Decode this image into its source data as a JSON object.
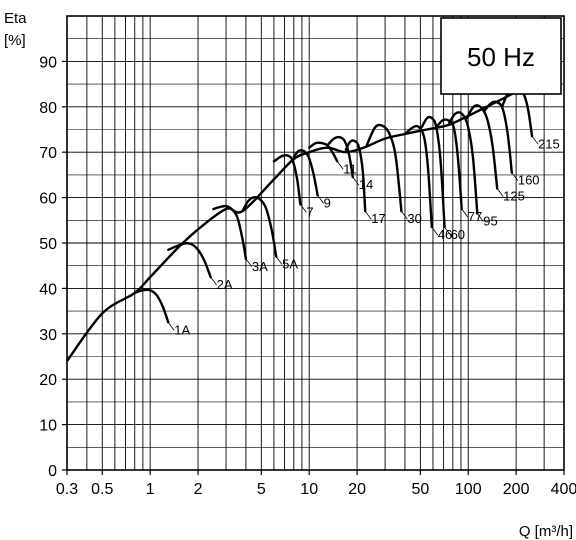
{
  "chart_data": {
    "type": "line",
    "ylabel": "Eta",
    "ylabel_unit": "[%]",
    "xlabel": "Q [m³/h]",
    "badge": "50 Hz",
    "x_scale": "log",
    "xlim": [
      0.3,
      400
    ],
    "ylim": [
      0,
      100
    ],
    "grid": true,
    "x_ticks": [
      0.3,
      0.5,
      1,
      2,
      5,
      10,
      20,
      50,
      100,
      200,
      400
    ],
    "x_tick_labels": [
      "0.3",
      "0.5",
      "1",
      "2",
      "5",
      "10",
      "20",
      "50",
      "100",
      "200",
      "400"
    ],
    "y_ticks": [
      0,
      10,
      20,
      30,
      40,
      50,
      60,
      70,
      80,
      90
    ],
    "y_tick_labels": [
      "0",
      "10",
      "20",
      "30",
      "40",
      "50",
      "60",
      "70",
      "80",
      "90"
    ],
    "envelope": {
      "x": [
        0.3,
        0.5,
        0.8,
        1.0,
        1.5,
        2.0,
        3.0,
        3.8,
        6.0,
        8.0,
        10.0,
        13.0,
        17.0,
        22.0,
        30.0,
        40.0,
        55.0,
        75.0,
        100.0,
        130.0,
        170.0,
        215.0
      ],
      "y": [
        24,
        34.5,
        39,
        42.5,
        49,
        53,
        57.5,
        57,
        64,
        68.5,
        70,
        71,
        70,
        71,
        73,
        74,
        75,
        76,
        78,
        80,
        82,
        84
      ]
    },
    "series": [
      {
        "name": "1A",
        "x": [
          0.8,
          0.9,
          1.0,
          1.1,
          1.2,
          1.3
        ],
        "y": [
          39,
          39.6,
          39.6,
          38.5,
          36,
          32.5
        ]
      },
      {
        "name": "2A",
        "x": [
          1.3,
          1.6,
          1.8,
          2.0,
          2.2,
          2.4
        ],
        "y": [
          48.5,
          49.8,
          49.8,
          48.5,
          46,
          42.5
        ]
      },
      {
        "name": "3A",
        "x": [
          2.5,
          2.8,
          3.1,
          3.5,
          3.8,
          4.0
        ],
        "y": [
          57.5,
          58,
          58,
          56,
          51,
          46.5
        ]
      },
      {
        "name": "5A",
        "x": [
          3.8,
          4.2,
          4.7,
          5.3,
          5.8,
          6.2
        ],
        "y": [
          57,
          59.5,
          60,
          58,
          53,
          47
        ]
      },
      {
        "name": "7",
        "x": [
          6.0,
          6.8,
          7.4,
          7.9,
          8.4,
          8.8
        ],
        "y": [
          68,
          69.2,
          69.2,
          68,
          64,
          58.5
        ]
      },
      {
        "name": "9",
        "x": [
          8.0,
          8.6,
          9.2,
          9.9,
          10.6,
          11.3
        ],
        "y": [
          69,
          70.3,
          70.3,
          69,
          65.5,
          60.5
        ]
      },
      {
        "name": "11",
        "x": [
          10.0,
          11.0,
          12.0,
          13.0,
          14.0,
          15.0
        ],
        "y": [
          71,
          72,
          72,
          71.5,
          70,
          68
        ]
      },
      {
        "name": "14",
        "x": [
          13.0,
          14.3,
          15.5,
          16.7,
          17.8,
          18.8
        ],
        "y": [
          71.5,
          73,
          73.3,
          72.5,
          69.5,
          64.5
        ]
      },
      {
        "name": "17",
        "x": [
          17.0,
          18.0,
          19.2,
          20.5,
          21.7,
          22.5
        ],
        "y": [
          70.5,
          72.2,
          72.5,
          71.2,
          66,
          57
        ]
      },
      {
        "name": "30",
        "x": [
          23.0,
          26.0,
          29.0,
          32.0,
          35.0,
          38.0
        ],
        "y": [
          71.5,
          75.5,
          75.8,
          74,
          69,
          57
        ]
      },
      {
        "name": "46",
        "x": [
          40.0,
          45.0,
          49.0,
          53.0,
          56.0,
          59.0
        ],
        "y": [
          74,
          75.5,
          75.5,
          73,
          66,
          53.5
        ]
      },
      {
        "name": "60",
        "x": [
          51.0,
          55.0,
          59.0,
          63.0,
          67.0,
          71.0
        ],
        "y": [
          75.5,
          77.5,
          77.5,
          75.5,
          68,
          53.5
        ]
      },
      {
        "name": "77",
        "x": [
          63.0,
          69.0,
          75.0,
          81.0,
          86.0,
          91.0
        ],
        "y": [
          75.5,
          77,
          77,
          75.5,
          69,
          57.5
        ]
      },
      {
        "name": "95",
        "x": [
          76.0,
          83.0,
          91.0,
          99.0,
          107.0,
          114.0
        ],
        "y": [
          76.5,
          78.5,
          78.5,
          76,
          69,
          56.5
        ]
      },
      {
        "name": "125",
        "x": [
          98.0,
          108.0,
          119.0,
          131.0,
          142.0,
          152.0
        ],
        "y": [
          77.5,
          80,
          80,
          77.5,
          71.5,
          62
        ]
      },
      {
        "name": "160",
        "x": [
          126.0,
          139.0,
          152.0,
          165.0,
          177.0,
          188.0
        ],
        "y": [
          79,
          80.8,
          81,
          79.5,
          74,
          65.5
        ]
      },
      {
        "name": "215",
        "x": [
          163.0,
          181.0,
          200.0,
          218.0,
          236.0,
          252.0
        ],
        "y": [
          80,
          83.5,
          84,
          83.5,
          80,
          73.5
        ]
      }
    ]
  }
}
